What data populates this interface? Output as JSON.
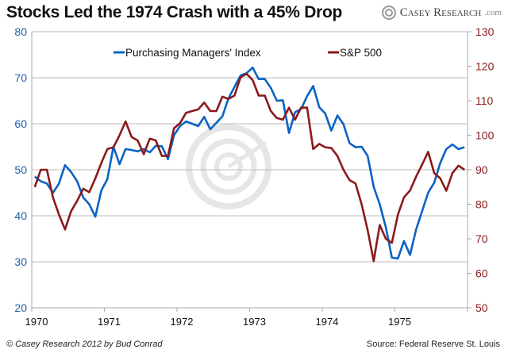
{
  "title": "Stocks Led the 1974 Crash with a 45% Drop",
  "logo": {
    "text": "Casey Research",
    "suffix": ".com"
  },
  "footer": {
    "left": "© Casey Research 2012 by Bud Conrad",
    "right": "Source: Federal Reserve St. Louis"
  },
  "chart_data": {
    "type": "line",
    "title": "Stocks Led the 1974 Crash with a 45% Drop",
    "x_ticks": [
      "1970",
      "1971",
      "1972",
      "1973",
      "1974",
      "1975"
    ],
    "x_range": [
      "1970-01",
      "1975-12"
    ],
    "x_frequency": "monthly",
    "y_left": {
      "range": [
        20,
        80
      ],
      "ticks": [
        20,
        30,
        40,
        50,
        60,
        70,
        80
      ],
      "color": "#1f5fa8"
    },
    "y_right": {
      "range": [
        50,
        130
      ],
      "ticks": [
        50,
        60,
        70,
        80,
        90,
        100,
        110,
        120,
        130
      ],
      "color": "#8b1a1a"
    },
    "grid": true,
    "legend_placement": "top",
    "series": [
      {
        "name": "Purchasing Managers' Index",
        "axis": "left",
        "color": "#0b63c4",
        "values": [
          48.5,
          47.5,
          47,
          45,
          47,
          51,
          49.5,
          47.5,
          44,
          42.5,
          39.8,
          45.5,
          48,
          55,
          51.2,
          54.5,
          54.3,
          54,
          54.5,
          53.8,
          55.2,
          55.1,
          52.3,
          57.5,
          59.5,
          60.5,
          60,
          59.5,
          61.5,
          58.8,
          60.2,
          61.6,
          65.5,
          68,
          70.5,
          71,
          72.2,
          69.7,
          69.7,
          67.8,
          65,
          65.1,
          58,
          62.5,
          63.2,
          66,
          68.2,
          63.6,
          62.2,
          58.5,
          61.8,
          59.9,
          55.8,
          54.9,
          55,
          53,
          46.3,
          42.5,
          37.5,
          30.9,
          30.7,
          34.5,
          31.5,
          37,
          41,
          45,
          47.2,
          51.5,
          54.5,
          55.5,
          54.5,
          54.9
        ]
      },
      {
        "name": "S&P 500",
        "axis": "right",
        "color": "#8b1a1a",
        "values": [
          85,
          90,
          90,
          82,
          77,
          72.7,
          78,
          81,
          84.5,
          83.5,
          87.5,
          92,
          96,
          96.5,
          100,
          104,
          99.5,
          98.5,
          94.5,
          99,
          98.5,
          94,
          94,
          102,
          103.5,
          106.5,
          107,
          107.5,
          109.5,
          107,
          107,
          111.2,
          110.5,
          111.5,
          116.8,
          117.8,
          116,
          111.5,
          111.5,
          107,
          105,
          104.5,
          108,
          104.5,
          108,
          108,
          96,
          97.5,
          96.5,
          96.3,
          94,
          90,
          87,
          86,
          80,
          72.5,
          63.5,
          74,
          70,
          68.8,
          77,
          82,
          84,
          88,
          91.5,
          95.2,
          89,
          87.5,
          83.9,
          89,
          91.2,
          90
        ]
      }
    ]
  }
}
